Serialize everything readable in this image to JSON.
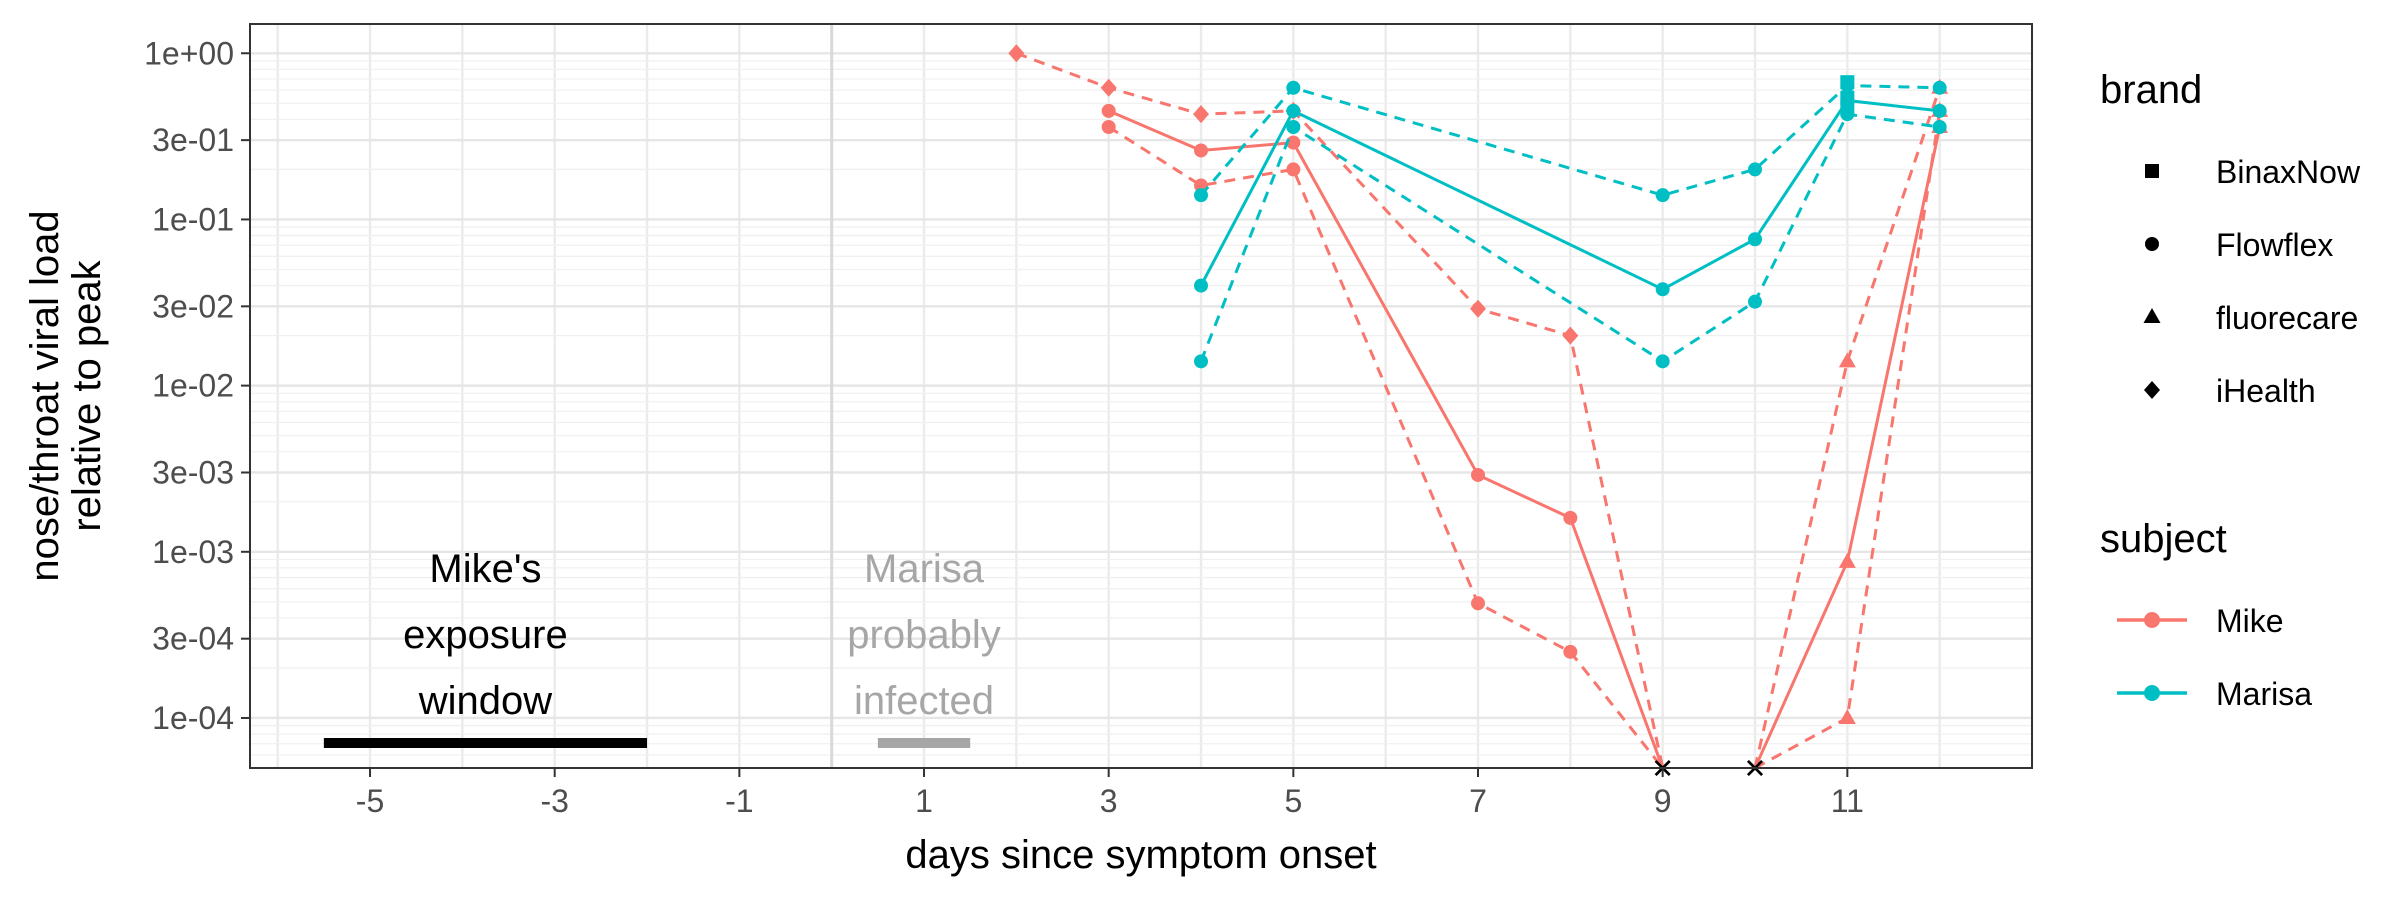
{
  "chart_data": {
    "type": "line",
    "title": "",
    "xlabel": "days since symptom onset",
    "ylabel_lines": [
      "nose/throat viral load",
      "relative to peak"
    ],
    "x_ticks": [
      -5,
      -3,
      -1,
      1,
      3,
      5,
      7,
      9,
      11
    ],
    "x_tick_labels": [
      "-5",
      "-3",
      "-1",
      "1",
      "3",
      "5",
      "7",
      "9",
      "11"
    ],
    "xlim": [
      -6.3,
      13.0
    ],
    "y_scale": "log10",
    "ylim": [
      5e-05,
      1.5
    ],
    "y_ticks": [
      0.0001,
      0.0003,
      0.001,
      0.003,
      0.01,
      0.03,
      0.1,
      0.3,
      1
    ],
    "y_tick_labels": [
      "1e-04",
      "3e-04",
      "1e-03",
      "3e-03",
      "1e-02",
      "3e-02",
      "1e-01",
      "3e-01",
      "1e+00"
    ],
    "grid": true,
    "vline": {
      "x": 0,
      "color": "#d9d9d9"
    },
    "annotations": [
      {
        "name": "mike-exposure",
        "lines": [
          "Mike's",
          "exposure",
          "window"
        ],
        "color": "#000000",
        "bar": [
          -5.5,
          -2
        ],
        "text_x": -3.75
      },
      {
        "name": "marisa-infected",
        "lines": [
          "Marisa",
          "probably",
          "infected"
        ],
        "color": "#a6a6a6",
        "bar": [
          0.5,
          1.5
        ],
        "text_x": 1.0
      }
    ],
    "colors": {
      "Mike": "#F8766D",
      "Marisa": "#00BFC4"
    },
    "series": [
      {
        "name": "Mike",
        "brand": "iHealth",
        "line": "dashed",
        "points": [
          [
            2,
            1.0
          ],
          [
            3,
            0.62
          ],
          [
            4,
            0.43
          ],
          [
            5,
            0.45
          ],
          [
            7,
            0.029
          ],
          [
            8,
            0.02
          ],
          [
            9,
            "floor"
          ]
        ]
      },
      {
        "name": "Mike",
        "brand": "Flowflex",
        "line": "solid",
        "points": [
          [
            3,
            0.45
          ],
          [
            4,
            0.26
          ],
          [
            5,
            0.29
          ],
          [
            7,
            0.0029
          ],
          [
            8,
            0.0016
          ],
          [
            9,
            "floor"
          ]
        ]
      },
      {
        "name": "Mike",
        "brand": "Flowflex",
        "line": "dashed",
        "points": [
          [
            3,
            0.36
          ],
          [
            4,
            0.16
          ],
          [
            5,
            0.2
          ],
          [
            7,
            0.00049
          ],
          [
            8,
            0.00025
          ],
          [
            9,
            "floor"
          ]
        ]
      },
      {
        "name": "Mike",
        "brand": "fluorecare",
        "line": "solid",
        "points": [
          [
            10,
            "floor"
          ],
          [
            11,
            0.00087
          ],
          [
            12,
            0.36
          ]
        ]
      },
      {
        "name": "Mike",
        "brand": "fluorecare",
        "line": "dashed",
        "points": [
          [
            10,
            "floor"
          ],
          [
            11,
            0.0001
          ],
          [
            12,
            0.45
          ]
        ]
      },
      {
        "name": "Mike",
        "brand": "fluorecare",
        "line": "dashed",
        "points": [
          [
            10,
            "floor"
          ],
          [
            11,
            0.014
          ],
          [
            12,
            0.62
          ]
        ]
      },
      {
        "name": "Marisa",
        "brand": "Flowflex",
        "line": "solid",
        "points": [
          [
            4,
            0.04
          ],
          [
            5,
            0.45
          ],
          [
            9,
            0.038
          ],
          [
            10,
            0.076
          ],
          [
            11,
            0.52
          ],
          [
            12,
            0.45
          ]
        ]
      },
      {
        "name": "Marisa",
        "brand": "Flowflex",
        "line": "dashed",
        "points": [
          [
            4,
            0.014
          ],
          [
            5,
            0.36
          ],
          [
            9,
            0.014
          ],
          [
            10,
            0.032
          ],
          [
            11,
            0.43
          ],
          [
            12,
            0.36
          ]
        ]
      },
      {
        "name": "Marisa",
        "brand": "Flowflex",
        "line": "dashed",
        "points": [
          [
            4,
            0.14
          ],
          [
            5,
            0.62
          ],
          [
            9,
            0.14
          ],
          [
            10,
            0.2
          ],
          [
            11,
            0.64
          ],
          [
            12,
            0.62
          ]
        ]
      }
    ],
    "brand_markers": [
      {
        "x": 11,
        "y": 0.67,
        "brand": "BinaxNow",
        "subject": "Marisa"
      },
      {
        "x": 11,
        "y": 0.54,
        "brand": "BinaxNow",
        "subject": "Marisa"
      },
      {
        "x": 11,
        "y": 0.46,
        "brand": "BinaxNow",
        "subject": "Marisa"
      }
    ],
    "legend": {
      "position": "right",
      "brand_title": "brand",
      "brand_items": [
        {
          "label": "BinaxNow",
          "shape": "square"
        },
        {
          "label": "Flowflex",
          "shape": "circle"
        },
        {
          "label": "fluorecare",
          "shape": "triangle"
        },
        {
          "label": "iHealth",
          "shape": "diamond"
        }
      ],
      "subject_title": "subject",
      "subject_items": [
        {
          "label": "Mike",
          "color": "#F8766D"
        },
        {
          "label": "Marisa",
          "color": "#00BFC4"
        }
      ]
    }
  }
}
